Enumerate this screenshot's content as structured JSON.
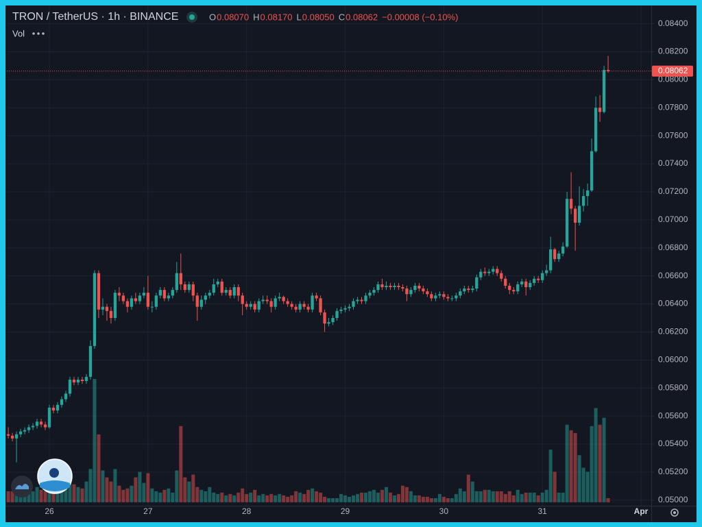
{
  "chart_data": {
    "type": "candlestick",
    "title": "TRON / TetherUS · 1h · BINANCE",
    "legend_values": [
      {
        "key": "O",
        "value": "0.08070"
      },
      {
        "key": "H",
        "value": "0.08170"
      },
      {
        "key": "L",
        "value": "0.08050"
      },
      {
        "key": "C",
        "value": "0.08062"
      }
    ],
    "change": "−0.00008 (−0.10%)",
    "volume_label": "Vol",
    "up_color": "#26a69a",
    "down_color": "#ef5350",
    "grid": true,
    "ylim": [
      0.0496,
      0.0853
    ],
    "yticks": [
      {
        "value": 0.05,
        "label": "0.05000"
      },
      {
        "value": 0.052,
        "label": "0.05200"
      },
      {
        "value": 0.054,
        "label": "0.05400"
      },
      {
        "value": 0.056,
        "label": "0.05600"
      },
      {
        "value": 0.058,
        "label": "0.05800"
      },
      {
        "value": 0.06,
        "label": "0.06000"
      },
      {
        "value": 0.062,
        "label": "0.06200"
      },
      {
        "value": 0.064,
        "label": "0.06400"
      },
      {
        "value": 0.066,
        "label": "0.06600"
      },
      {
        "value": 0.068,
        "label": "0.06800"
      },
      {
        "value": 0.07,
        "label": "0.07000"
      },
      {
        "value": 0.072,
        "label": "0.07200"
      },
      {
        "value": 0.074,
        "label": "0.07400"
      },
      {
        "value": 0.076,
        "label": "0.07600"
      },
      {
        "value": 0.078,
        "label": "0.07800"
      },
      {
        "value": 0.08,
        "label": "0.08000"
      },
      {
        "value": 0.082,
        "label": "0.08200"
      },
      {
        "value": 0.084,
        "label": "0.08400"
      }
    ],
    "xlim": [
      -0.35,
      156.5
    ],
    "xticks": [
      {
        "value": 10,
        "label": "26"
      },
      {
        "value": 34,
        "label": "27"
      },
      {
        "value": 58,
        "label": "28"
      },
      {
        "value": 82,
        "label": "29"
      },
      {
        "value": 106,
        "label": "30"
      },
      {
        "value": 130,
        "label": "31"
      },
      {
        "value": 154,
        "label": "Apr"
      }
    ],
    "open": [
      0.0547,
      0.0546,
      0.0544,
      0.0547,
      0.0549,
      0.055,
      0.0552,
      0.0553,
      0.0556,
      0.0554,
      0.0552,
      0.0566,
      0.0564,
      0.0568,
      0.0572,
      0.0576,
      0.0586,
      0.0584,
      0.0586,
      0.0585,
      0.0588,
      0.061,
      0.0662,
      0.0636,
      0.0638,
      0.0635,
      0.063,
      0.0648,
      0.0646,
      0.0642,
      0.0638,
      0.0644,
      0.0642,
      0.0646,
      0.0648,
      0.0638,
      0.0638,
      0.0646,
      0.065,
      0.0644,
      0.0646,
      0.065,
      0.0662,
      0.0654,
      0.065,
      0.0654,
      0.0646,
      0.0638,
      0.0643,
      0.0646,
      0.0648,
      0.0654,
      0.0656,
      0.0648,
      0.065,
      0.0646,
      0.0652,
      0.0646,
      0.064,
      0.0638,
      0.064,
      0.0636,
      0.0642,
      0.0643,
      0.0642,
      0.0638,
      0.0644,
      0.0645,
      0.0642,
      0.064,
      0.0638,
      0.0636,
      0.064,
      0.0638,
      0.0636,
      0.0646,
      0.0644,
      0.0634,
      0.0626,
      0.0627,
      0.063,
      0.0635,
      0.0636,
      0.0637,
      0.0638,
      0.0642,
      0.0643,
      0.0642,
      0.0646,
      0.0648,
      0.065,
      0.0654,
      0.0652,
      0.0653,
      0.0652,
      0.0653,
      0.0652,
      0.0651,
      0.0647,
      0.065,
      0.0653,
      0.0651,
      0.0649,
      0.0647,
      0.0644,
      0.0646,
      0.0647,
      0.0645,
      0.0644,
      0.0644,
      0.0646,
      0.0649,
      0.0651,
      0.065,
      0.0651,
      0.0659,
      0.0663,
      0.0662,
      0.0663,
      0.0665,
      0.0662,
      0.0658,
      0.0653,
      0.065,
      0.0649,
      0.0654,
      0.0656,
      0.0652,
      0.0655,
      0.0658,
      0.0657,
      0.0662,
      0.0664,
      0.0679,
      0.0672,
      0.0676,
      0.0681,
      0.0715,
      0.0708,
      0.0698,
      0.071,
      0.0717,
      0.0721,
      0.0749,
      0.078,
      0.0777,
      0.0807
    ],
    "high": [
      0.0552,
      0.0548,
      0.0549,
      0.0551,
      0.0552,
      0.0554,
      0.0555,
      0.0558,
      0.0558,
      0.0556,
      0.0568,
      0.0568,
      0.057,
      0.0574,
      0.0578,
      0.0588,
      0.0588,
      0.0588,
      0.0588,
      0.059,
      0.0614,
      0.0664,
      0.0664,
      0.0644,
      0.064,
      0.0638,
      0.065,
      0.0652,
      0.0648,
      0.0644,
      0.0646,
      0.0648,
      0.0648,
      0.0652,
      0.066,
      0.0642,
      0.0648,
      0.0652,
      0.0652,
      0.0648,
      0.0652,
      0.067,
      0.0676,
      0.0656,
      0.0656,
      0.0656,
      0.0648,
      0.0646,
      0.0648,
      0.065,
      0.0658,
      0.0658,
      0.0658,
      0.0652,
      0.0652,
      0.0654,
      0.0654,
      0.0648,
      0.0642,
      0.0642,
      0.0642,
      0.0644,
      0.0646,
      0.0646,
      0.0644,
      0.0646,
      0.0648,
      0.0646,
      0.0644,
      0.0642,
      0.064,
      0.0642,
      0.0642,
      0.064,
      0.0648,
      0.0648,
      0.0646,
      0.0636,
      0.063,
      0.0632,
      0.0637,
      0.0638,
      0.0639,
      0.064,
      0.0644,
      0.0645,
      0.0645,
      0.0648,
      0.065,
      0.0652,
      0.0656,
      0.0658,
      0.0656,
      0.0655,
      0.0655,
      0.0655,
      0.0654,
      0.0653,
      0.0652,
      0.0655,
      0.0655,
      0.0653,
      0.0651,
      0.0649,
      0.0648,
      0.0649,
      0.0649,
      0.0647,
      0.0646,
      0.0648,
      0.0651,
      0.0653,
      0.0653,
      0.0653,
      0.0661,
      0.0665,
      0.0666,
      0.0665,
      0.0667,
      0.0667,
      0.0664,
      0.066,
      0.0655,
      0.0652,
      0.0656,
      0.0658,
      0.0658,
      0.0657,
      0.066,
      0.066,
      0.0664,
      0.0668,
      0.0688,
      0.068,
      0.0678,
      0.0684,
      0.072,
      0.0734,
      0.071,
      0.0724,
      0.0722,
      0.0726,
      0.0758,
      0.0788,
      0.0789,
      0.081,
      0.0817
    ],
    "low": [
      0.0544,
      0.0542,
      0.0527,
      0.0545,
      0.0547,
      0.0548,
      0.055,
      0.0551,
      0.0552,
      0.055,
      0.0551,
      0.0562,
      0.0562,
      0.0566,
      0.057,
      0.0574,
      0.0582,
      0.0582,
      0.0583,
      0.0583,
      0.0586,
      0.0608,
      0.063,
      0.0632,
      0.0628,
      0.0626,
      0.0628,
      0.0642,
      0.064,
      0.0634,
      0.0636,
      0.064,
      0.064,
      0.0644,
      0.0636,
      0.0634,
      0.0636,
      0.0644,
      0.0642,
      0.0642,
      0.0644,
      0.0648,
      0.065,
      0.0648,
      0.0648,
      0.0642,
      0.0628,
      0.0636,
      0.064,
      0.0644,
      0.0646,
      0.0652,
      0.0646,
      0.0646,
      0.0644,
      0.0644,
      0.0642,
      0.0632,
      0.0636,
      0.0636,
      0.0634,
      0.0634,
      0.064,
      0.064,
      0.0634,
      0.0636,
      0.0642,
      0.064,
      0.0638,
      0.0636,
      0.0634,
      0.0634,
      0.0636,
      0.0634,
      0.0634,
      0.0642,
      0.0632,
      0.062,
      0.0624,
      0.0625,
      0.0628,
      0.0633,
      0.0634,
      0.0635,
      0.0636,
      0.064,
      0.064,
      0.064,
      0.0644,
      0.0646,
      0.0648,
      0.065,
      0.065,
      0.065,
      0.065,
      0.065,
      0.0649,
      0.0642,
      0.0645,
      0.0648,
      0.0649,
      0.0647,
      0.0645,
      0.0642,
      0.0642,
      0.0644,
      0.0643,
      0.0642,
      0.0642,
      0.0642,
      0.0644,
      0.0647,
      0.0648,
      0.0648,
      0.0649,
      0.0657,
      0.066,
      0.066,
      0.0661,
      0.066,
      0.0656,
      0.0651,
      0.0647,
      0.0647,
      0.0647,
      0.0652,
      0.0646,
      0.065,
      0.0653,
      0.0655,
      0.0655,
      0.066,
      0.0662,
      0.067,
      0.067,
      0.0674,
      0.068,
      0.0704,
      0.0678,
      0.0696,
      0.0706,
      0.071,
      0.072,
      0.0748,
      0.077,
      0.0776,
      0.0805
    ],
    "close": [
      0.0546,
      0.0544,
      0.0547,
      0.0549,
      0.055,
      0.0552,
      0.0553,
      0.0556,
      0.0554,
      0.0552,
      0.0566,
      0.0564,
      0.0568,
      0.0572,
      0.0576,
      0.0586,
      0.0584,
      0.0586,
      0.0585,
      0.0588,
      0.061,
      0.0662,
      0.0636,
      0.0638,
      0.0635,
      0.063,
      0.0648,
      0.0646,
      0.0642,
      0.0638,
      0.0644,
      0.0642,
      0.0646,
      0.0648,
      0.0638,
      0.0638,
      0.0646,
      0.065,
      0.0644,
      0.0646,
      0.065,
      0.0662,
      0.0654,
      0.065,
      0.0654,
      0.0646,
      0.0638,
      0.0643,
      0.0646,
      0.0648,
      0.0654,
      0.0656,
      0.0648,
      0.065,
      0.0646,
      0.0652,
      0.0646,
      0.064,
      0.0638,
      0.064,
      0.0636,
      0.0642,
      0.0643,
      0.0642,
      0.0638,
      0.0644,
      0.0645,
      0.0642,
      0.064,
      0.0638,
      0.0636,
      0.064,
      0.0638,
      0.0636,
      0.0646,
      0.0644,
      0.0634,
      0.0626,
      0.0627,
      0.063,
      0.0635,
      0.0636,
      0.0637,
      0.0638,
      0.0642,
      0.0643,
      0.0642,
      0.0646,
      0.0648,
      0.065,
      0.0654,
      0.0652,
      0.0653,
      0.0652,
      0.0653,
      0.0652,
      0.0651,
      0.0647,
      0.065,
      0.0653,
      0.0651,
      0.0649,
      0.0647,
      0.0644,
      0.0646,
      0.0647,
      0.0645,
      0.0644,
      0.0644,
      0.0646,
      0.0649,
      0.0651,
      0.065,
      0.0651,
      0.0659,
      0.0663,
      0.0662,
      0.0663,
      0.0665,
      0.0662,
      0.0658,
      0.0653,
      0.065,
      0.0649,
      0.0654,
      0.0656,
      0.0652,
      0.0655,
      0.0658,
      0.0657,
      0.0662,
      0.0664,
      0.0679,
      0.0672,
      0.0676,
      0.0681,
      0.0715,
      0.0708,
      0.0698,
      0.071,
      0.0717,
      0.0721,
      0.0749,
      0.078,
      0.0777,
      0.0807,
      0.08062
    ],
    "volume": [
      16,
      16,
      12,
      16,
      14,
      18,
      16,
      22,
      18,
      16,
      26,
      14,
      20,
      16,
      22,
      36,
      26,
      22,
      20,
      30,
      48,
      178,
      98,
      46,
      36,
      30,
      48,
      24,
      18,
      20,
      24,
      36,
      44,
      28,
      42,
      20,
      16,
      14,
      18,
      20,
      14,
      46,
      110,
      36,
      30,
      40,
      22,
      18,
      16,
      22,
      14,
      12,
      14,
      10,
      12,
      10,
      14,
      20,
      12,
      14,
      18,
      10,
      12,
      10,
      12,
      10,
      12,
      10,
      8,
      10,
      16,
      14,
      12,
      18,
      20,
      16,
      14,
      8,
      6,
      6,
      6,
      12,
      10,
      8,
      10,
      12,
      14,
      14,
      16,
      18,
      14,
      18,
      22,
      14,
      10,
      12,
      24,
      22,
      16,
      10,
      10,
      8,
      8,
      6,
      6,
      12,
      8,
      6,
      6,
      12,
      20,
      16,
      40,
      30,
      16,
      16,
      18,
      18,
      16,
      16,
      16,
      12,
      16,
      10,
      18,
      12,
      14,
      14,
      14,
      10,
      14,
      18,
      76,
      44,
      14,
      14,
      112,
      104,
      100,
      68,
      50,
      44,
      110,
      136,
      112,
      122,
      6
    ]
  }
}
